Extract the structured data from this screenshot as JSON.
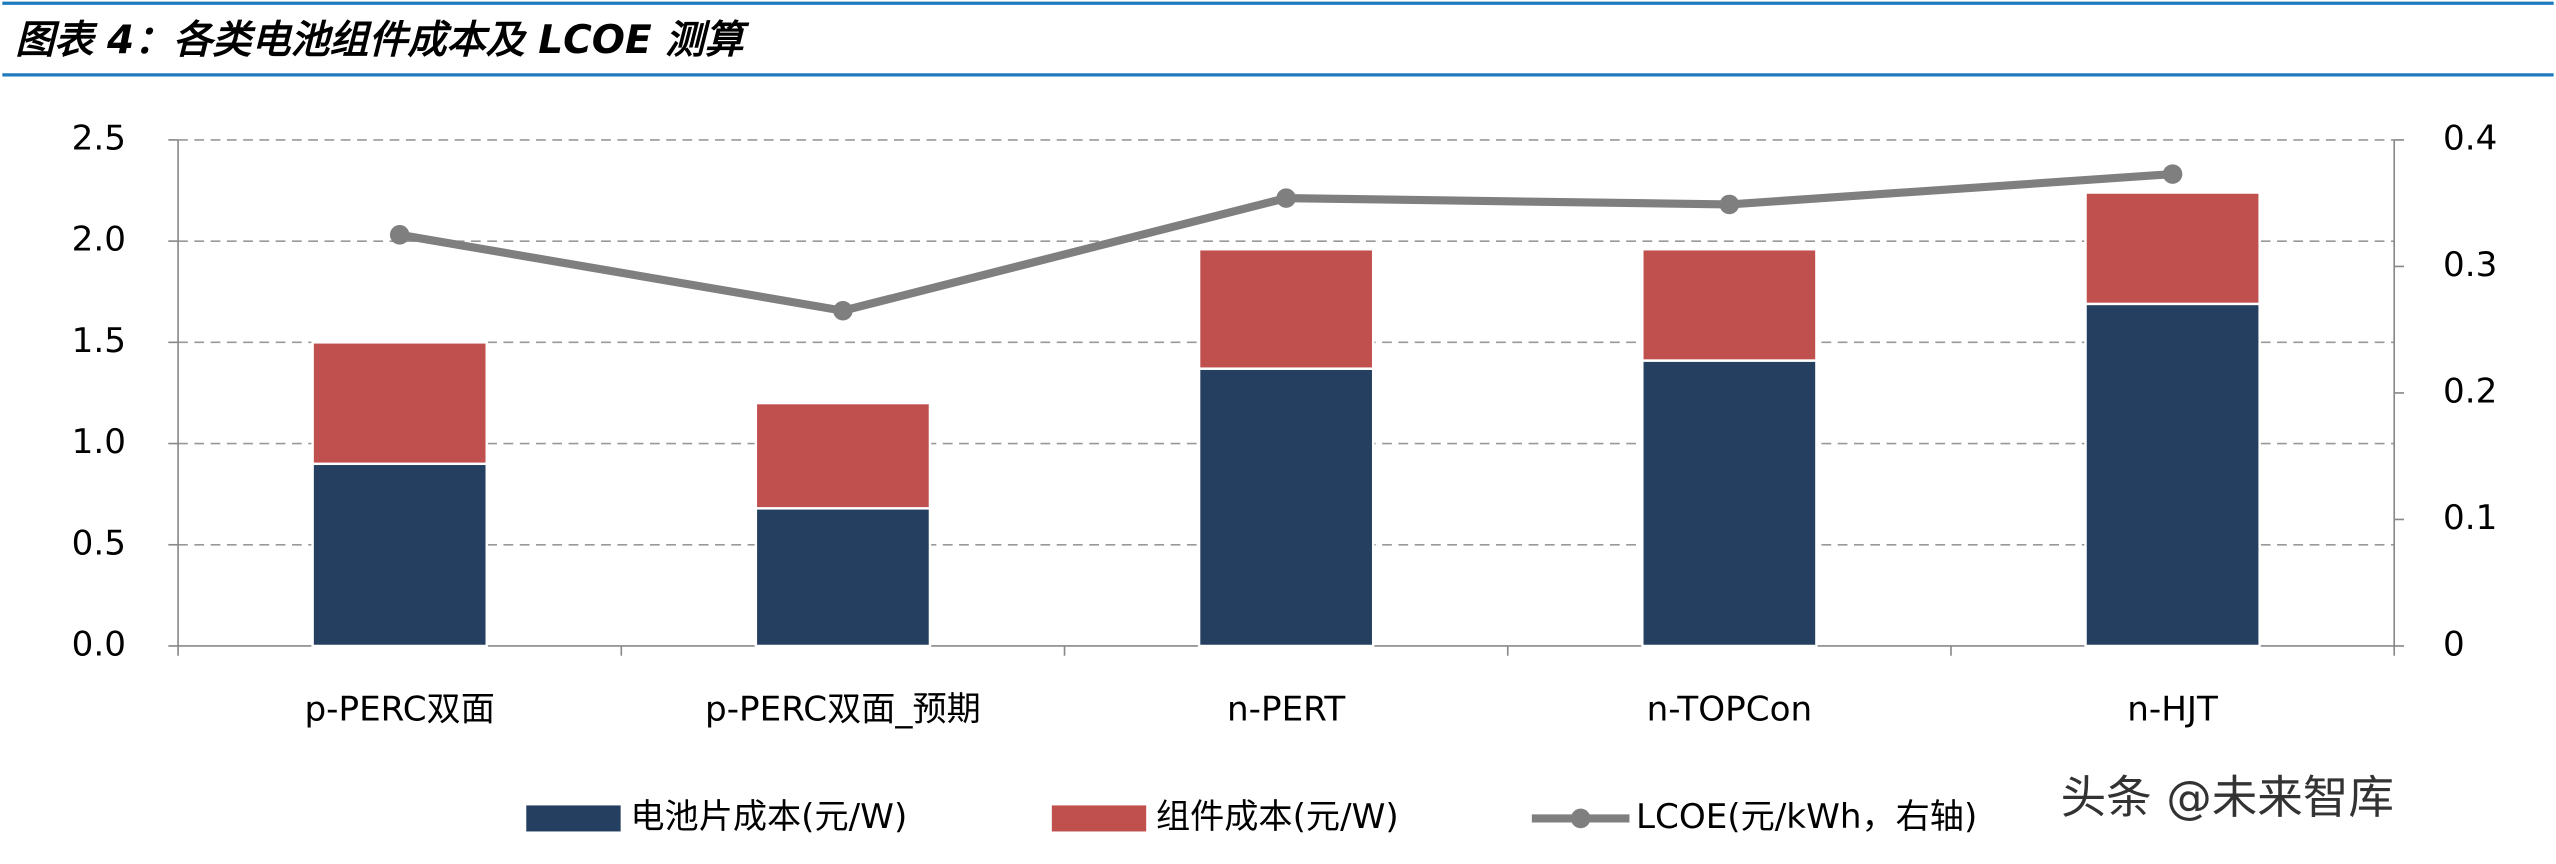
{
  "chart_data": {
    "type": "bar_line",
    "title": "图表 4：各类电池组件成本及 LCOE 测算",
    "watermark": "头条 @未来智库",
    "categories": [
      "p-PERC双面",
      "p-PERC双面_预期",
      "n-PERT",
      "n-TOPCon",
      "n-HJT"
    ],
    "series": [
      {
        "name": "电池片成本(元/W)",
        "color": "#243f60",
        "kind": "stacked",
        "values": [
          0.9,
          0.68,
          1.37,
          1.41,
          1.69
        ]
      },
      {
        "name": "组件成本(元/W)",
        "color": "#c0504d",
        "kind": "stacked",
        "values": [
          0.6,
          0.52,
          0.59,
          0.55,
          0.55
        ]
      },
      {
        "name": "LCOE(元/kWh，右轴)",
        "color": "#7f7f7f",
        "kind": "line",
        "axis": "y2",
        "values": [
          0.325,
          0.265,
          0.354,
          0.349,
          0.373
        ]
      }
    ],
    "ylim": [
      0,
      2.5
    ],
    "yticks": [
      {
        "value": 0,
        "label": "0.0"
      },
      0.5,
      {
        "value": 1,
        "label": "1.0"
      },
      1.5,
      {
        "value": 2,
        "label": "2.0"
      },
      2.5
    ],
    "y2lim": [
      0,
      0.4
    ],
    "y2ticks": [
      0,
      0.1,
      0.2,
      0.3,
      0.4
    ],
    "grid": true
  }
}
